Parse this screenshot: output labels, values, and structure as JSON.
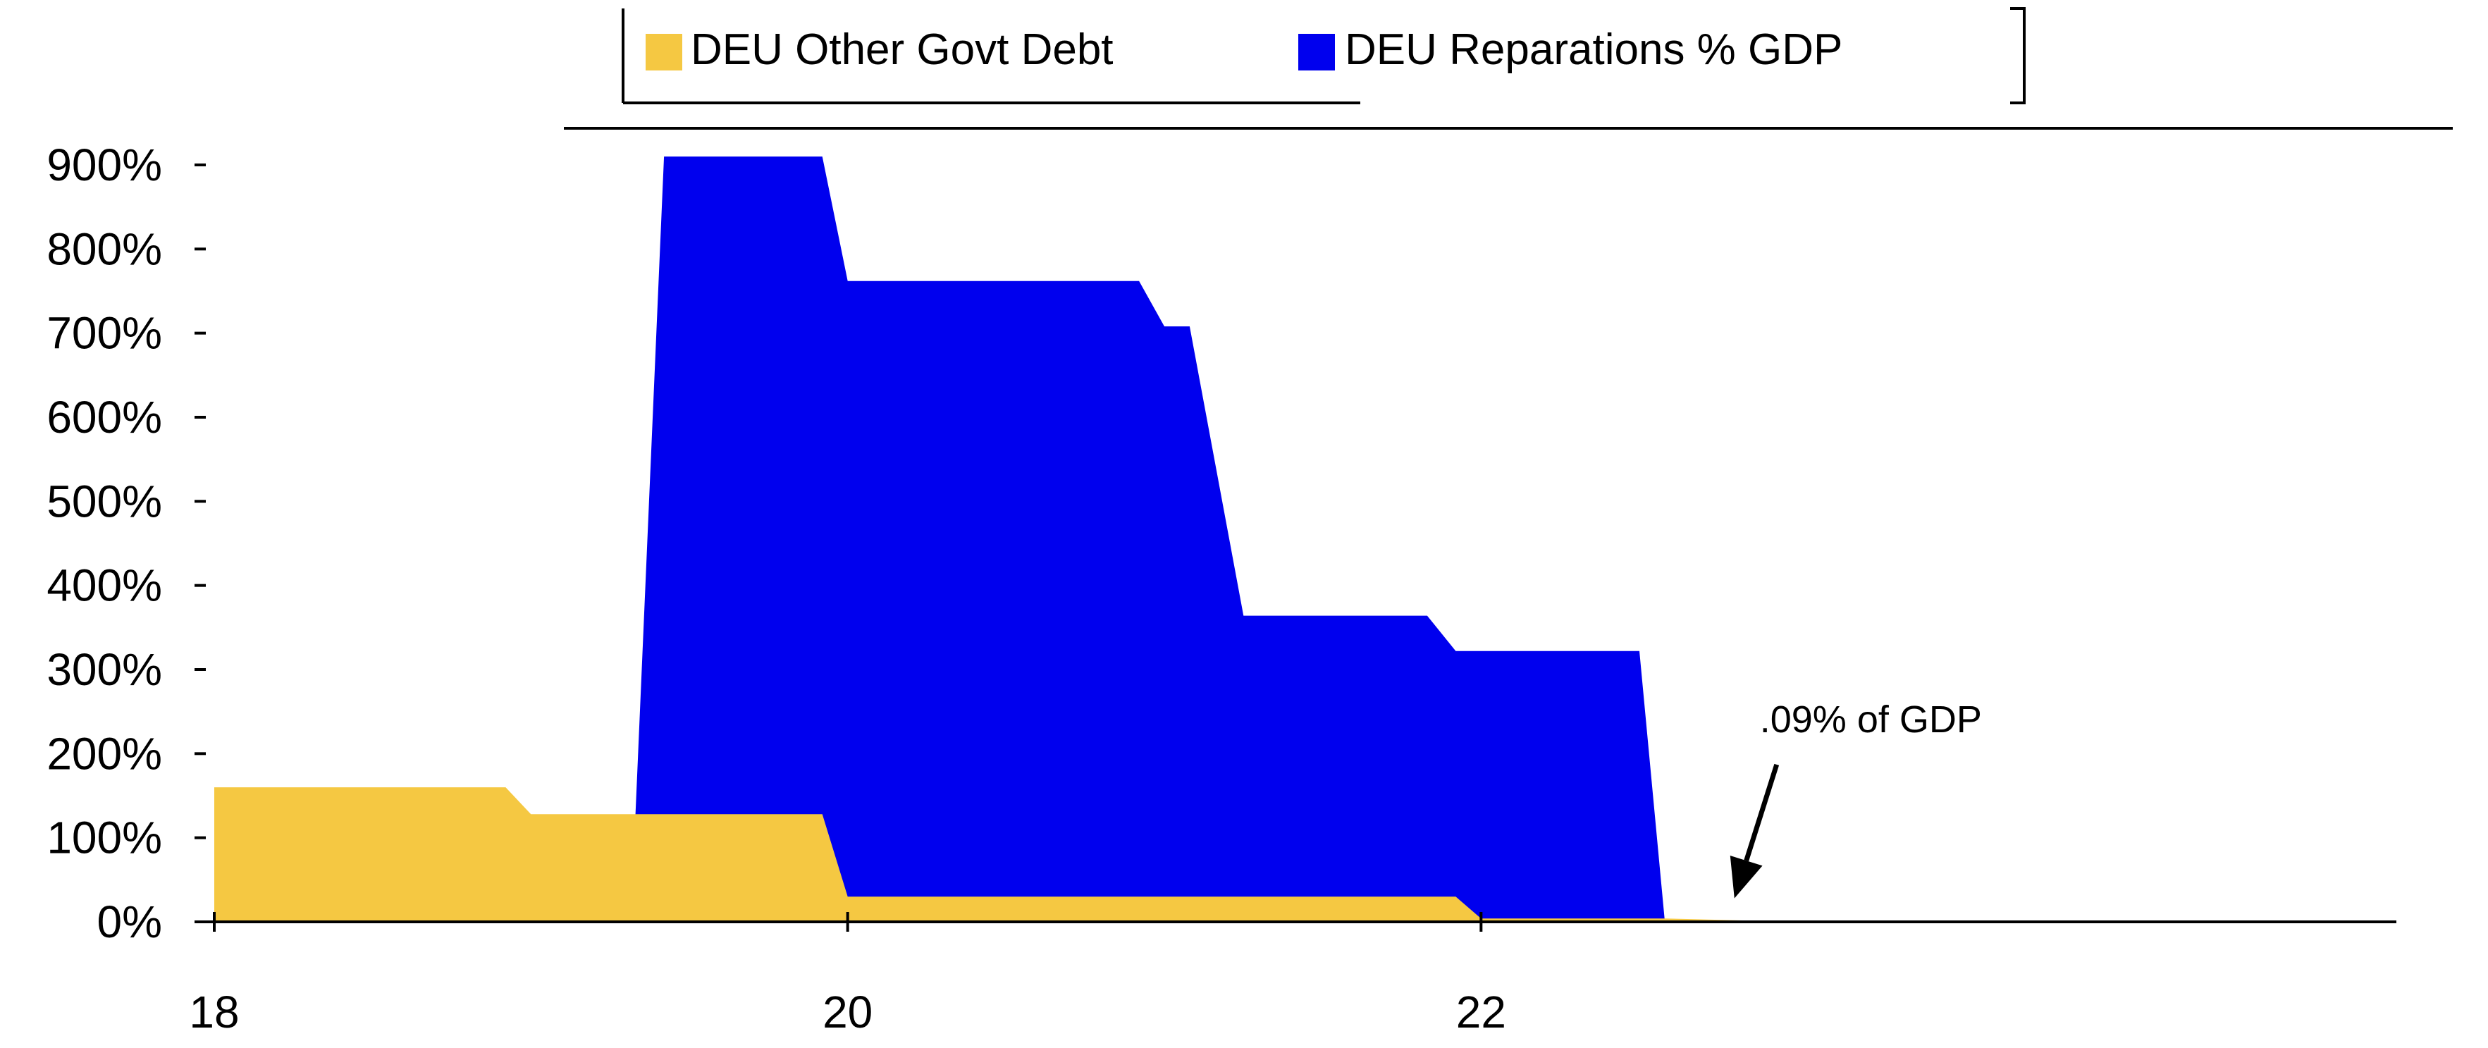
{
  "chart_data": {
    "type": "area",
    "title": "",
    "xlabel": "",
    "ylabel": "",
    "xlim": [
      18,
      24
    ],
    "ylim": [
      0,
      900
    ],
    "x_ticks": [
      18,
      20,
      22
    ],
    "x_tick_labels": [
      "18",
      "20",
      "22"
    ],
    "y_ticks": [
      0,
      100,
      200,
      300,
      400,
      500,
      600,
      700,
      800,
      900
    ],
    "y_tick_labels": [
      "0%",
      "100%",
      "200%",
      "300%",
      "400%",
      "500%",
      "600%",
      "700%",
      "800%",
      "900%"
    ],
    "stacked": false,
    "grid": false,
    "legend": {
      "placement": "top-center"
    },
    "series": [
      {
        "name": "DEU Reparations % GDP",
        "color": "#0000ee",
        "points": [
          [
            19.33,
            128
          ],
          [
            19.42,
            910
          ],
          [
            19.92,
            910
          ],
          [
            20.0,
            762
          ],
          [
            20.92,
            762
          ],
          [
            21.0,
            708
          ],
          [
            21.08,
            708
          ],
          [
            21.25,
            364
          ],
          [
            21.83,
            364
          ],
          [
            21.92,
            322
          ],
          [
            22.5,
            322
          ],
          [
            22.58,
            2
          ],
          [
            19.33,
            2
          ]
        ]
      },
      {
        "name": "DEU Other Govt Debt",
        "color": "#f5c842",
        "points": [
          [
            18.0,
            160
          ],
          [
            18.92,
            160
          ],
          [
            19.0,
            128
          ],
          [
            19.92,
            128
          ],
          [
            20.0,
            30
          ],
          [
            21.92,
            30
          ],
          [
            22.0,
            4
          ],
          [
            22.58,
            4
          ],
          [
            23.0,
            0
          ]
        ]
      }
    ],
    "annotations": [
      {
        "text": ".09% of GDP",
        "x": 22.88,
        "y": 192,
        "arrow_to": [
          22.8,
          28
        ]
      }
    ]
  }
}
